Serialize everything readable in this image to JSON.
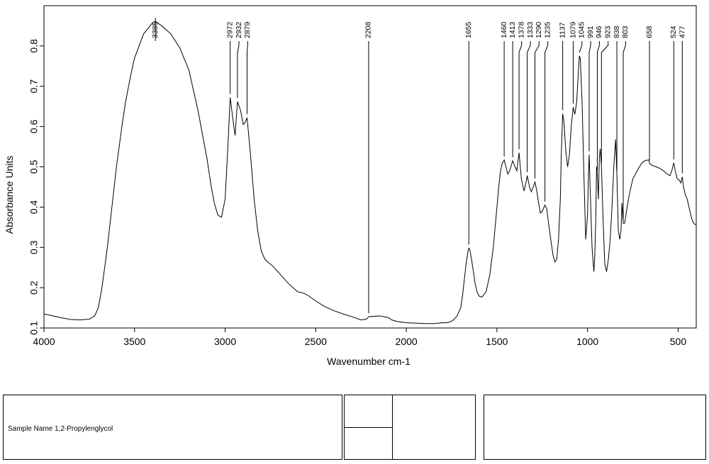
{
  "chart_data": {
    "type": "line",
    "xlabel": "Wavenumber cm-1",
    "ylabel": "Absorbance Units",
    "xlim": [
      4000,
      400
    ],
    "ylim": [
      0.1,
      0.9
    ],
    "xticks": [
      4000,
      3500,
      3000,
      2500,
      2000,
      1500,
      1000,
      500
    ],
    "yticks": [
      0.1,
      0.2,
      0.3,
      0.4,
      0.5,
      0.6,
      0.7,
      0.8
    ],
    "grid": false,
    "line_color": "#000000",
    "series": [
      {
        "x": [
          4000,
          3900,
          3850,
          3800,
          3750,
          3720,
          3700,
          3680,
          3650,
          3620,
          3600,
          3570,
          3550,
          3520,
          3500,
          3450,
          3400,
          3385,
          3350,
          3300,
          3250,
          3200,
          3150,
          3100,
          3080,
          3060,
          3040,
          3020,
          3000,
          2985,
          2972,
          2955,
          2945,
          2932,
          2915,
          2900,
          2890,
          2879,
          2860,
          2840,
          2820,
          2800,
          2780,
          2760,
          2740,
          2720,
          2700,
          2650,
          2600,
          2580,
          2560,
          2540,
          2500,
          2450,
          2400,
          2350,
          2300,
          2250,
          2220,
          2208,
          2150,
          2100,
          2080,
          2050,
          2000,
          1950,
          1900,
          1850,
          1800,
          1780,
          1760,
          1740,
          1720,
          1700,
          1690,
          1680,
          1670,
          1660,
          1655,
          1650,
          1640,
          1630,
          1620,
          1610,
          1600,
          1590,
          1580,
          1560,
          1540,
          1520,
          1500,
          1490,
          1480,
          1470,
          1460,
          1450,
          1440,
          1430,
          1413,
          1400,
          1390,
          1378,
          1365,
          1350,
          1340,
          1333,
          1320,
          1310,
          1300,
          1290,
          1280,
          1270,
          1260,
          1250,
          1235,
          1225,
          1215,
          1200,
          1190,
          1180,
          1170,
          1160,
          1150,
          1145,
          1137,
          1130,
          1120,
          1110,
          1100,
          1090,
          1079,
          1070,
          1060,
          1050,
          1045,
          1040,
          1030,
          1020,
          1010,
          1000,
          995,
          991,
          985,
          975,
          965,
          960,
          955,
          950,
          946,
          940,
          935,
          930,
          923,
          915,
          905,
          895,
          885,
          875,
          865,
          855,
          845,
          838,
          830,
          822,
          815,
          810,
          803,
          795,
          785,
          770,
          750,
          720,
          700,
          680,
          660,
          658,
          640,
          620,
          600,
          580,
          560,
          545,
          535,
          524,
          515,
          505,
          495,
          485,
          477,
          470,
          460,
          450,
          440,
          430,
          420,
          410,
          400
        ],
        "y": [
          0.135,
          0.125,
          0.121,
          0.12,
          0.122,
          0.13,
          0.15,
          0.2,
          0.3,
          0.42,
          0.5,
          0.6,
          0.66,
          0.73,
          0.77,
          0.83,
          0.858,
          0.861,
          0.85,
          0.83,
          0.795,
          0.74,
          0.64,
          0.52,
          0.46,
          0.41,
          0.38,
          0.375,
          0.42,
          0.55,
          0.672,
          0.61,
          0.578,
          0.662,
          0.64,
          0.605,
          0.61,
          0.622,
          0.53,
          0.42,
          0.34,
          0.29,
          0.27,
          0.262,
          0.255,
          0.245,
          0.235,
          0.21,
          0.19,
          0.188,
          0.185,
          0.18,
          0.167,
          0.153,
          0.143,
          0.135,
          0.128,
          0.12,
          0.122,
          0.128,
          0.13,
          0.126,
          0.12,
          0.116,
          0.113,
          0.112,
          0.111,
          0.111,
          0.113,
          0.113,
          0.115,
          0.12,
          0.13,
          0.15,
          0.18,
          0.22,
          0.26,
          0.29,
          0.298,
          0.295,
          0.27,
          0.24,
          0.21,
          0.19,
          0.18,
          0.177,
          0.178,
          0.19,
          0.23,
          0.3,
          0.4,
          0.45,
          0.49,
          0.51,
          0.517,
          0.5,
          0.482,
          0.49,
          0.515,
          0.5,
          0.49,
          0.535,
          0.47,
          0.44,
          0.46,
          0.478,
          0.45,
          0.438,
          0.45,
          0.462,
          0.44,
          0.41,
          0.385,
          0.39,
          0.405,
          0.395,
          0.36,
          0.31,
          0.28,
          0.264,
          0.27,
          0.32,
          0.42,
          0.53,
          0.632,
          0.61,
          0.54,
          0.5,
          0.53,
          0.6,
          0.648,
          0.63,
          0.66,
          0.74,
          0.775,
          0.77,
          0.66,
          0.48,
          0.32,
          0.38,
          0.48,
          0.53,
          0.44,
          0.3,
          0.24,
          0.28,
          0.36,
          0.5,
          0.48,
          0.42,
          0.52,
          0.545,
          0.5,
          0.38,
          0.26,
          0.24,
          0.27,
          0.32,
          0.4,
          0.5,
          0.568,
          0.48,
          0.34,
          0.32,
          0.345,
          0.41,
          0.36,
          0.36,
          0.39,
          0.43,
          0.47,
          0.495,
          0.51,
          0.516,
          0.517,
          0.508,
          0.503,
          0.5,
          0.496,
          0.49,
          0.482,
          0.478,
          0.49,
          0.51,
          0.488,
          0.47,
          0.468,
          0.46,
          0.475,
          0.45,
          0.43,
          0.42,
          0.4,
          0.38,
          0.365,
          0.358,
          0.356
        ]
      }
    ],
    "peak_labels": [
      3385,
      2972,
      2932,
      2879,
      2208,
      1655,
      1460,
      1413,
      1378,
      1333,
      1290,
      1235,
      1137,
      1079,
      1045,
      991,
      946,
      923,
      838,
      803,
      658,
      524,
      477
    ]
  },
  "info_panel": {
    "sample_label": "Sample Name",
    "sample_value": "1,2-Propylenglycol"
  }
}
